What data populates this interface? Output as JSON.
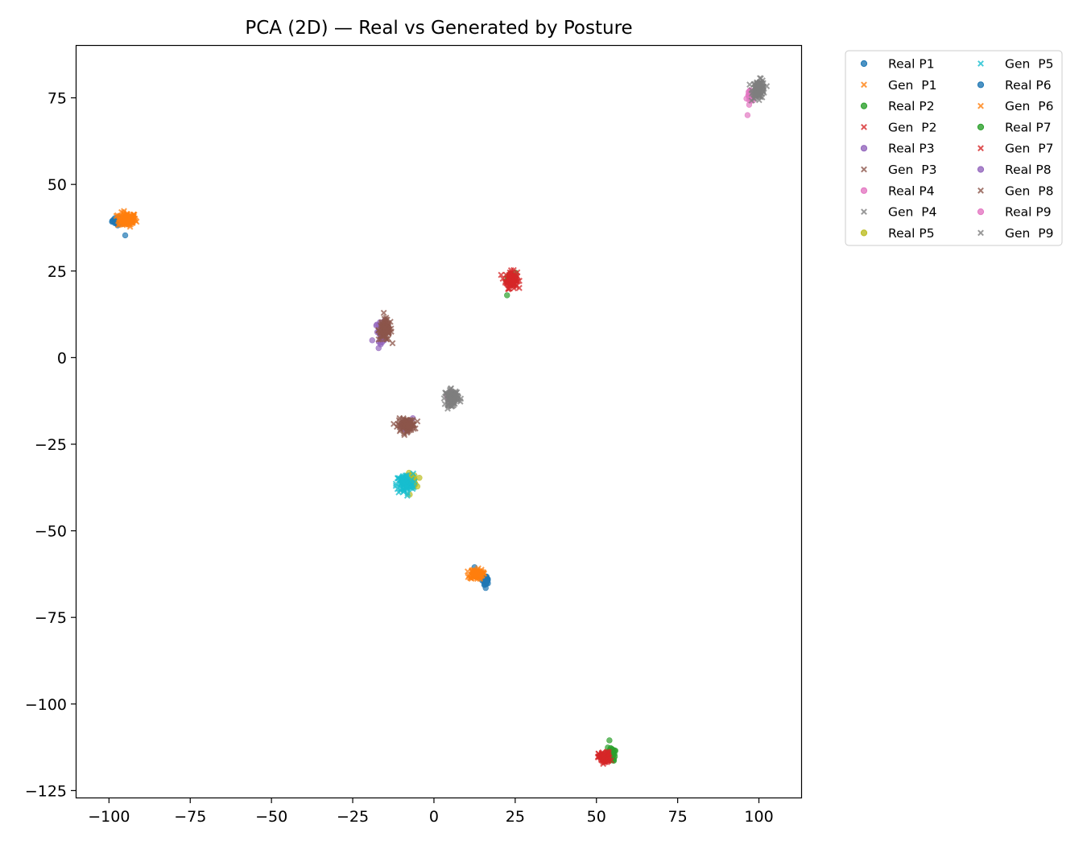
{
  "chart_data": {
    "type": "scatter",
    "title": "PCA (2D) — Real vs Generated by Posture",
    "xlabel": "",
    "ylabel": "",
    "xlim": [
      -110,
      113
    ],
    "ylim": [
      -127,
      90
    ],
    "xticks": [
      -100,
      -75,
      -50,
      -25,
      0,
      25,
      50,
      75,
      100
    ],
    "yticks": [
      -125,
      -100,
      -75,
      -50,
      -25,
      0,
      25,
      50,
      75
    ],
    "xtick_labels": [
      "−100",
      "−75",
      "−50",
      "−25",
      "0",
      "25",
      "50",
      "75",
      "100"
    ],
    "ytick_labels": [
      "−125",
      "−100",
      "−75",
      "−50",
      "−25",
      "0",
      "25",
      "50",
      "75"
    ],
    "grid": false,
    "legend_position": "outside top-right",
    "legend_columns": 2,
    "series": [
      {
        "name": "Real P1",
        "marker": "circle",
        "color": "#1f77b4",
        "cluster_center": [
          -97,
          39.5
        ],
        "spread": [
          1.0,
          0.5
        ],
        "outliers": [
          [
            -95,
            35.3
          ]
        ]
      },
      {
        "name": "Gen  P1",
        "marker": "x",
        "color": "#ff7f0e",
        "cluster_center": [
          -94.5,
          39.8
        ],
        "spread": [
          1.4,
          1.0
        ],
        "outliers": []
      },
      {
        "name": "Real P2",
        "marker": "circle",
        "color": "#2ca02c",
        "cluster_center": [
          24,
          23
        ],
        "spread": [
          0.8,
          1.0
        ],
        "outliers": [
          [
            22.5,
            18
          ]
        ]
      },
      {
        "name": "Gen  P2",
        "marker": "x",
        "color": "#d62728",
        "cluster_center": [
          23.8,
          22.5
        ],
        "spread": [
          0.9,
          1.2
        ],
        "outliers": []
      },
      {
        "name": "Real P3",
        "marker": "circle",
        "color": "#9467bd",
        "cluster_center": [
          -16,
          7.5
        ],
        "spread": [
          1.0,
          1.4
        ],
        "outliers": [
          [
            -19,
            5
          ],
          [
            -16.5,
            4.3
          ]
        ]
      },
      {
        "name": "Gen  P3",
        "marker": "x",
        "color": "#8c564b",
        "cluster_center": [
          -15,
          8
        ],
        "spread": [
          1.0,
          1.5
        ],
        "outliers": []
      },
      {
        "name": "Real P4",
        "marker": "circle",
        "color": "#e377c2",
        "cluster_center": [
          97.5,
          75.5
        ],
        "spread": [
          0.5,
          0.8
        ],
        "outliers": [
          [
            96.5,
            70
          ],
          [
            97,
            73
          ]
        ]
      },
      {
        "name": "Gen  P4",
        "marker": "x",
        "color": "#7f7f7f",
        "cluster_center": [
          100,
          77.5
        ],
        "spread": [
          1.0,
          1.3
        ],
        "outliers": []
      },
      {
        "name": "Real P5",
        "marker": "circle",
        "color": "#bcbd22",
        "cluster_center": [
          -7,
          -35.5
        ],
        "spread": [
          0.8,
          1.0
        ],
        "outliers": [
          [
            -6,
            -34
          ]
        ]
      },
      {
        "name": "Gen  P5",
        "marker": "x",
        "color": "#17becf",
        "cluster_center": [
          -9,
          -36.5
        ],
        "spread": [
          1.3,
          1.5
        ],
        "outliers": []
      },
      {
        "name": "Real P6",
        "marker": "circle",
        "color": "#1f77b4",
        "cluster_center": [
          16,
          -64.5
        ],
        "spread": [
          0.4,
          0.7
        ],
        "outliers": [
          [
            12.5,
            -60.5
          ]
        ]
      },
      {
        "name": "Gen  P6",
        "marker": "x",
        "color": "#ff7f0e",
        "cluster_center": [
          13,
          -62.5
        ],
        "spread": [
          1.0,
          0.7
        ],
        "outliers": []
      },
      {
        "name": "Real P7",
        "marker": "circle",
        "color": "#2ca02c",
        "cluster_center": [
          54.5,
          -114.5
        ],
        "spread": [
          0.6,
          1.0
        ],
        "outliers": [
          [
            54,
            -110.5
          ]
        ]
      },
      {
        "name": "Gen  P7",
        "marker": "x",
        "color": "#d62728",
        "cluster_center": [
          52.5,
          -115.5
        ],
        "spread": [
          0.9,
          0.8
        ],
        "outliers": []
      },
      {
        "name": "Real P8",
        "marker": "circle",
        "color": "#9467bd",
        "cluster_center": [
          -8.5,
          -19.5
        ],
        "spread": [
          0.6,
          0.6
        ],
        "outliers": [
          [
            -6.5,
            -17.5
          ]
        ]
      },
      {
        "name": "Gen  P8",
        "marker": "x",
        "color": "#8c564b",
        "cluster_center": [
          -8.5,
          -19.5
        ],
        "spread": [
          1.3,
          0.9
        ],
        "outliers": []
      },
      {
        "name": "Real P9",
        "marker": "circle",
        "color": "#e377c2",
        "cluster_center": [
          5.5,
          -11
        ],
        "spread": [
          0.4,
          0.5
        ],
        "outliers": []
      },
      {
        "name": "Gen  P9",
        "marker": "x",
        "color": "#7f7f7f",
        "cluster_center": [
          5.5,
          -11.5
        ],
        "spread": [
          1.0,
          1.1
        ],
        "outliers": []
      }
    ]
  }
}
